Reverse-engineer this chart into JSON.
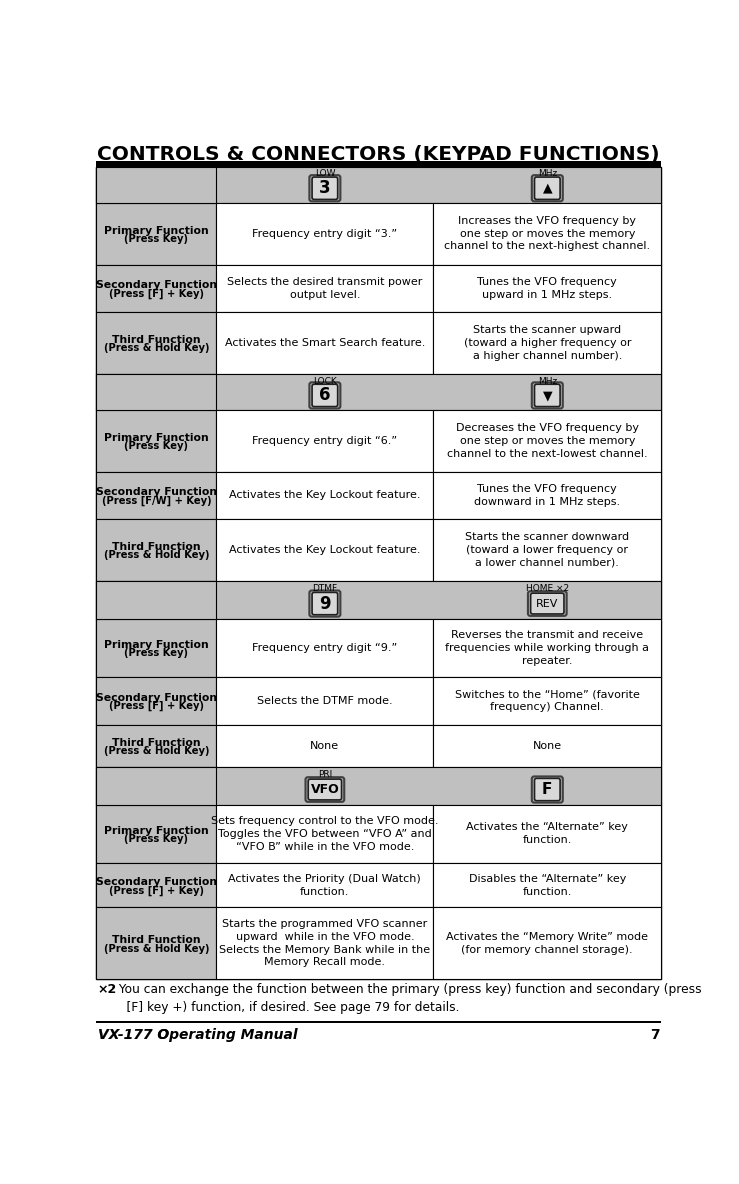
{
  "title_parts": [
    {
      "text": "C",
      "big": true
    },
    {
      "text": "ontrols ",
      "big": false
    },
    {
      "text": "& ",
      "big": true
    },
    {
      "text": "C",
      "big": true
    },
    {
      "text": "onnectors ",
      "big": false
    },
    {
      "text": "(",
      "big": true,
      "paren": true
    },
    {
      "text": "K",
      "big": true,
      "paren": true
    },
    {
      "text": "eypad ",
      "big": false,
      "paren": true
    },
    {
      "text": "F",
      "big": true,
      "paren": true
    },
    {
      "text": "unctions)",
      "big": false,
      "paren": true
    }
  ],
  "page_info": "VX-177 Operating Manual",
  "page_num": "7",
  "footnote_sym": "×2",
  "footnote_text": ": You can exchange the function between the primary (press key) function and secondary (press\n    [F] key +) function, if desired. See page 79 for details.",
  "bg_color": "#ffffff",
  "cell_bg_gray": "#c0c0c0",
  "cell_bg_white": "#ffffff",
  "sections": [
    {
      "key_label": "LOW",
      "key_text": "3",
      "key2_label": "MHz",
      "key2_symbol": "▲",
      "key2_is_arrow": true,
      "rows": [
        {
          "func_title": "Primary Function",
          "func_sub": "(Press Key)",
          "col2": "Frequency entry digit “3.”",
          "col3": "Increases the VFO frequency by\none step or moves the memory\nchannel to the next-highest channel."
        },
        {
          "func_title": "Secondary Function",
          "func_sub": "(Press [F] + Key)",
          "col2": "Selects the desired transmit power\noutput level.",
          "col3": "Tunes the VFO frequency\nupward in 1 MHz steps."
        },
        {
          "func_title": "Third Function",
          "func_sub": "(Press & Hold Key)",
          "col2": "Activates the Smart Search feature.",
          "col3": "Starts the scanner upward\n(toward a higher frequency or\na higher channel number)."
        }
      ]
    },
    {
      "key_label": "LOCK",
      "key_text": "6",
      "key2_label": "MHz",
      "key2_symbol": "▼",
      "key2_is_arrow": true,
      "rows": [
        {
          "func_title": "Primary Function",
          "func_sub": "(Press Key)",
          "col2": "Frequency entry digit “6.”",
          "col3": "Decreases the VFO frequency by\none step or moves the memory\nchannel to the next-lowest channel."
        },
        {
          "func_title": "Secondary Function",
          "func_sub": "(Press [F/W] + Key)",
          "col2": "Activates the Key Lockout feature.",
          "col3": "Tunes the VFO frequency\ndownward in 1 MHz steps."
        },
        {
          "func_title": "Third Function",
          "func_sub": "(Press & Hold Key)",
          "col2": "Activates the Key Lockout feature.",
          "col3": "Starts the scanner downward\n(toward a lower frequency or\na lower channel number)."
        }
      ]
    },
    {
      "key_label": "DTMF",
      "key_text": "9",
      "key2_label": "HOME ×2",
      "key2_symbol": "REV",
      "key2_is_arrow": false,
      "rows": [
        {
          "func_title": "Primary Function",
          "func_sub": "(Press Key)",
          "col2": "Frequency entry digit “9.”",
          "col3": "Reverses the transmit and receive\nfrequencies while working through a\nrepeater."
        },
        {
          "func_title": "Secondary Function",
          "func_sub": "(Press [F] + Key)",
          "col2": "Selects the DTMF mode.",
          "col3": "Switches to the “Home” (favorite\nfrequency) Channel."
        },
        {
          "func_title": "Third Function",
          "func_sub": "(Press & Hold Key)",
          "col2": "None",
          "col3": "None"
        }
      ]
    },
    {
      "key_label": "PRI",
      "key_text": "VFO",
      "key2_label": "",
      "key2_symbol": "F",
      "key2_is_arrow": false,
      "rows": [
        {
          "func_title": "Primary Function",
          "func_sub": "(Press Key)",
          "col2": "Sets frequency control to the VFO mode.\nToggles the VFO between “VFO A” and\n“VFO B” while in the VFO mode.",
          "col3": "Activates the “Alternate” key\nfunction."
        },
        {
          "func_title": "Secondary Function",
          "func_sub": "(Press [F] + Key)",
          "col2": "Activates the Priority (Dual Watch)\nfunction.",
          "col3": "Disables the “Alternate” key\nfunction."
        },
        {
          "func_title": "Third Function",
          "func_sub": "(Press & Hold Key)",
          "col2": "Starts the programmed VFO scanner\nupward  while in the VFO mode.\nSelects the Memory Bank while in the\nMemory Recall mode.",
          "col3": "Activates the “Memory Write” mode\n(for memory channel storage)."
        }
      ]
    }
  ]
}
